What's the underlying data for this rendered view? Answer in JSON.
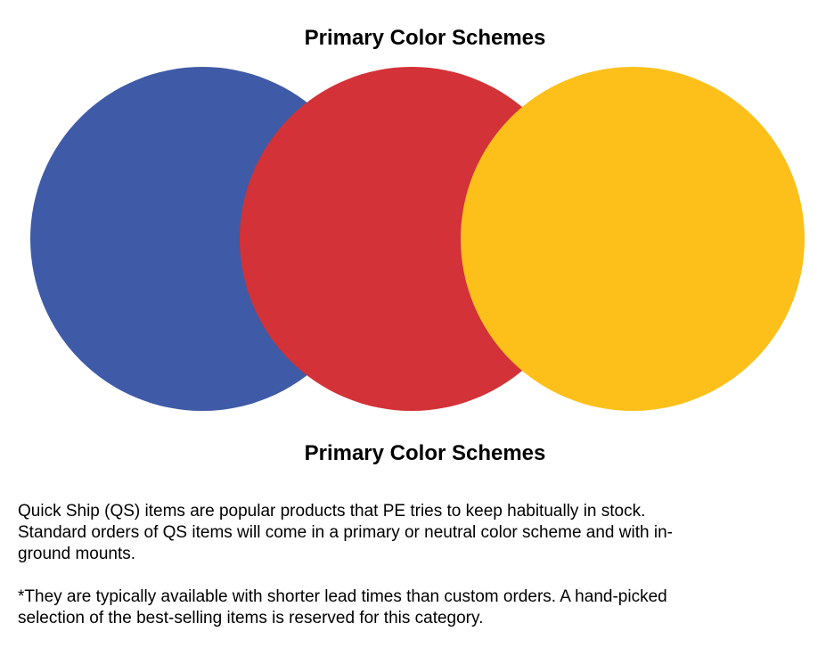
{
  "title_top": "Primary Color Schemes",
  "title_bottom": "Primary Color Schemes",
  "circles": [
    {
      "name": "blue",
      "color": "#3f5ba7"
    },
    {
      "name": "red",
      "color": "#d33238"
    },
    {
      "name": "yellow",
      "color": "#fdc01a"
    }
  ],
  "paragraphs": [
    {
      "lines": [
        "Quick Ship (QS) items are popular products that PE tries to keep habitually in stock.",
        "Standard orders of QS items will come in a primary or neutral color scheme and with in-",
        "ground mounts."
      ]
    },
    {
      "lines": [
        "*They are typically available with shorter lead times than custom orders. A hand-picked",
        "selection of the best-selling items is reserved for this category."
      ]
    }
  ]
}
